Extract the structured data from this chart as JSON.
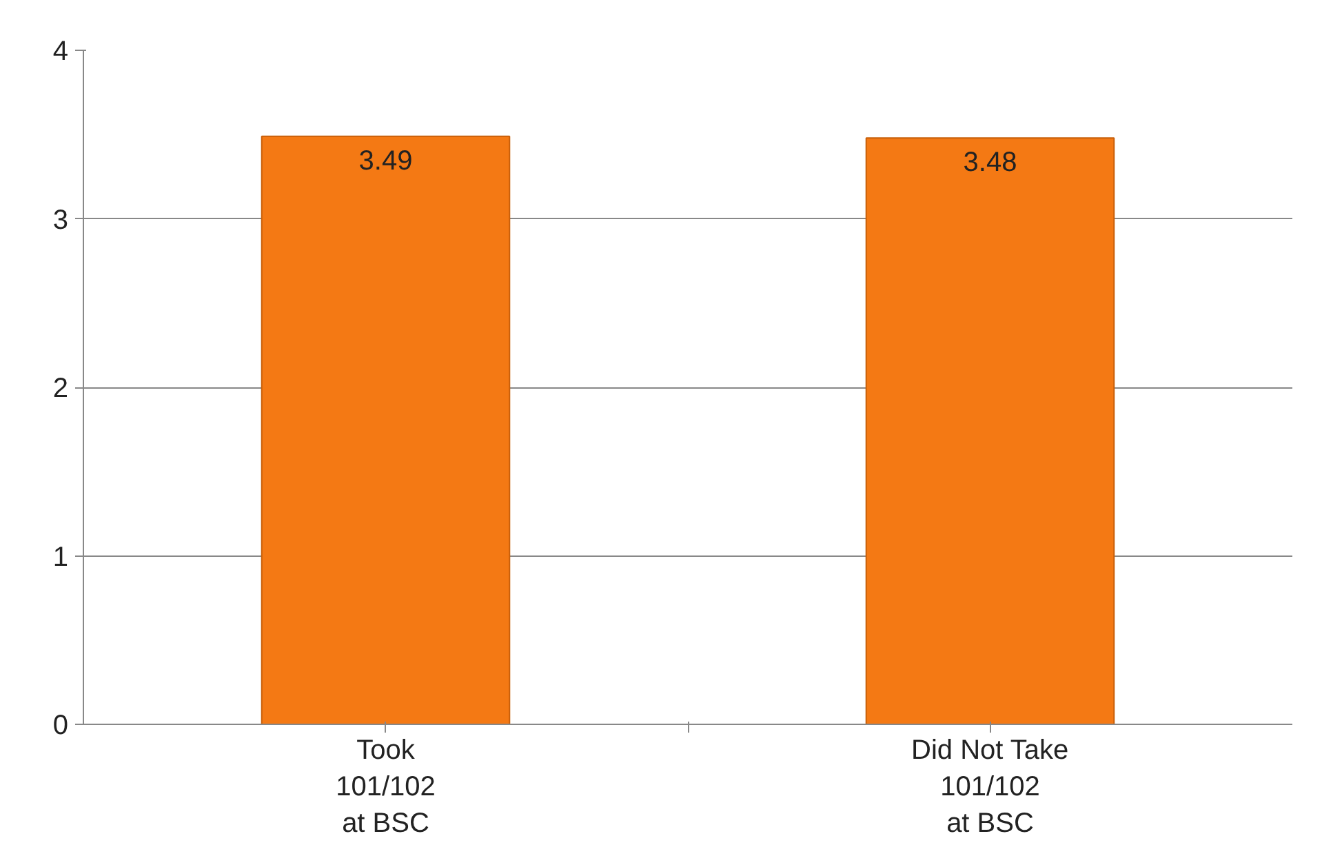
{
  "chart_data": {
    "type": "bar",
    "categories": [
      "Took\n101/102\nat BSC",
      "Did Not Take\n101/102\nat BSC"
    ],
    "values": [
      3.49,
      3.48
    ],
    "color": "#f47914",
    "ylim": [
      0,
      4
    ],
    "yticks": [
      0,
      1,
      2,
      3,
      4
    ],
    "grid": "y",
    "data_labels": true
  }
}
